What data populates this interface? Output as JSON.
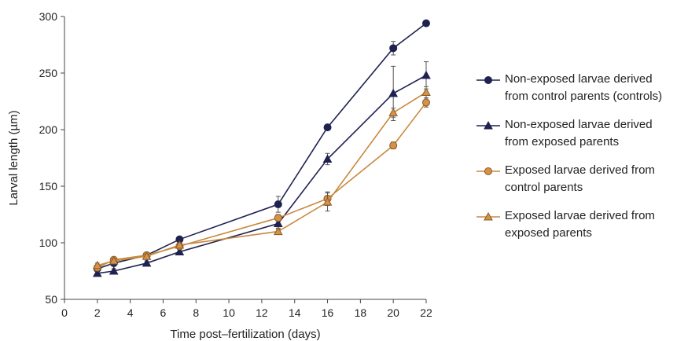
{
  "chart_data": {
    "type": "line",
    "xlabel": "Time post–fertilization (days)",
    "ylabel": "Larval length (µm)",
    "xlim": [
      0,
      22
    ],
    "ylim": [
      50,
      300
    ],
    "xticks": [
      0,
      2,
      4,
      6,
      8,
      10,
      12,
      14,
      16,
      18,
      20,
      22
    ],
    "yticks": [
      50,
      100,
      150,
      200,
      250,
      300
    ],
    "grid": false,
    "legend_position": "right",
    "x": [
      2,
      3,
      5,
      7,
      13,
      16,
      20,
      22
    ],
    "series": [
      {
        "name": "Non-exposed larvae derived\nfrom control parents (controls)",
        "marker": "circle",
        "color": "#1f2250",
        "marker_fill": "#1f2250",
        "values": [
          77,
          82,
          89,
          103,
          134,
          202,
          272,
          294
        ],
        "errors": [
          2,
          2,
          2,
          2,
          7,
          2,
          6,
          2
        ]
      },
      {
        "name": "Non-exposed larvae derived\nfrom exposed parents",
        "marker": "triangle",
        "color": "#1f2250",
        "marker_fill": "#1f2250",
        "values": [
          73,
          75,
          82,
          92,
          117,
          174,
          232,
          248
        ],
        "errors": [
          2,
          2,
          2,
          2,
          4,
          5,
          24,
          12
        ]
      },
      {
        "name": "Exposed larvae derived from\ncontrol parents",
        "marker": "circle",
        "color": "#c8893f",
        "marker_fill": "#d4924a",
        "values": [
          78,
          85,
          89,
          97,
          122,
          139,
          186,
          224
        ],
        "errors": [
          2,
          2,
          2,
          2,
          3,
          6,
          3,
          4
        ]
      },
      {
        "name": "Exposed larvae derived from\nexposed parents",
        "marker": "triangle",
        "color": "#c8893f",
        "marker_fill": "#d4924a",
        "values": [
          80,
          84,
          88,
          98,
          110,
          136,
          215,
          233
        ],
        "errors": [
          2,
          2,
          2,
          2,
          2,
          8,
          4,
          5
        ]
      }
    ]
  }
}
